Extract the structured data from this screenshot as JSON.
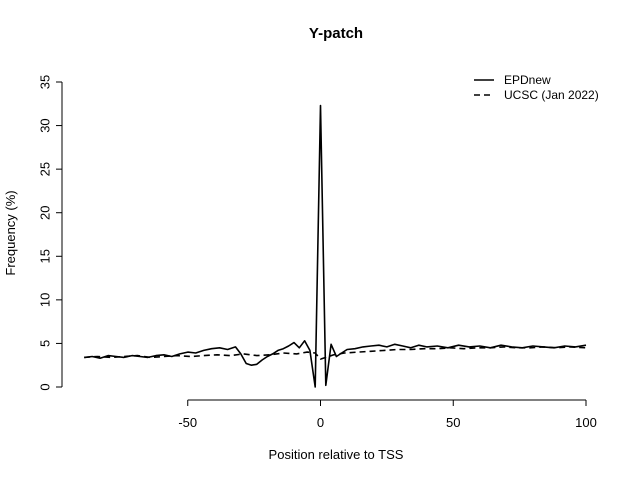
{
  "chart_data": {
    "type": "line",
    "title": "Y-patch",
    "xlabel": "Position relative to TSS",
    "ylabel": "Frequency (%)",
    "xlim": [
      -100,
      100
    ],
    "ylim": [
      0,
      35
    ],
    "xticks": [
      -50,
      0,
      50,
      100
    ],
    "yticks": [
      0,
      5,
      10,
      15,
      20,
      25,
      30,
      35
    ],
    "grid": false,
    "legend_position": "top-right",
    "series": [
      {
        "name": "EPDnew",
        "style": "solid",
        "x": [
          -89,
          -86,
          -83,
          -80,
          -77,
          -74,
          -71,
          -68,
          -65,
          -62,
          -59,
          -56,
          -53,
          -50,
          -47,
          -44,
          -41,
          -38,
          -35,
          -32,
          -30,
          -28,
          -26,
          -24,
          -22,
          -20,
          -18,
          -16,
          -14,
          -12,
          -10,
          -8,
          -6,
          -4,
          -2,
          0,
          2,
          4,
          6,
          8,
          10,
          13,
          16,
          19,
          22,
          25,
          28,
          31,
          34,
          37,
          40,
          44,
          48,
          52,
          56,
          60,
          64,
          68,
          72,
          76,
          80,
          84,
          88,
          92,
          96,
          100
        ],
        "values": [
          3.4,
          3.5,
          3.3,
          3.6,
          3.5,
          3.4,
          3.6,
          3.5,
          3.4,
          3.6,
          3.7,
          3.5,
          3.8,
          4.0,
          3.9,
          4.2,
          4.4,
          4.5,
          4.3,
          4.6,
          3.8,
          2.7,
          2.5,
          2.6,
          3.1,
          3.5,
          3.8,
          4.2,
          4.4,
          4.7,
          5.1,
          4.5,
          5.3,
          4.2,
          0.0,
          32.3,
          0.2,
          4.9,
          3.5,
          3.9,
          4.3,
          4.4,
          4.6,
          4.7,
          4.8,
          4.6,
          4.9,
          4.7,
          4.5,
          4.8,
          4.6,
          4.7,
          4.5,
          4.8,
          4.6,
          4.7,
          4.5,
          4.8,
          4.6,
          4.5,
          4.7,
          4.6,
          4.5,
          4.7,
          4.6,
          4.8
        ]
      },
      {
        "name": "UCSC (Jan 2022)",
        "style": "dashed",
        "x": [
          -89,
          -84,
          -79,
          -74,
          -69,
          -64,
          -59,
          -54,
          -49,
          -44,
          -39,
          -34,
          -29,
          -24,
          -19,
          -14,
          -9,
          -5,
          -2,
          0,
          2,
          5,
          9,
          14,
          19,
          24,
          29,
          34,
          39,
          44,
          49,
          54,
          59,
          64,
          69,
          74,
          79,
          84,
          89,
          94,
          100
        ],
        "values": [
          3.4,
          3.5,
          3.4,
          3.5,
          3.6,
          3.4,
          3.5,
          3.6,
          3.5,
          3.6,
          3.7,
          3.6,
          3.8,
          3.6,
          3.7,
          3.9,
          3.8,
          4.0,
          3.9,
          3.2,
          3.4,
          3.7,
          3.9,
          4.0,
          4.1,
          4.2,
          4.3,
          4.3,
          4.4,
          4.4,
          4.5,
          4.4,
          4.5,
          4.5,
          4.6,
          4.5,
          4.5,
          4.6,
          4.5,
          4.6,
          4.5
        ]
      }
    ]
  }
}
